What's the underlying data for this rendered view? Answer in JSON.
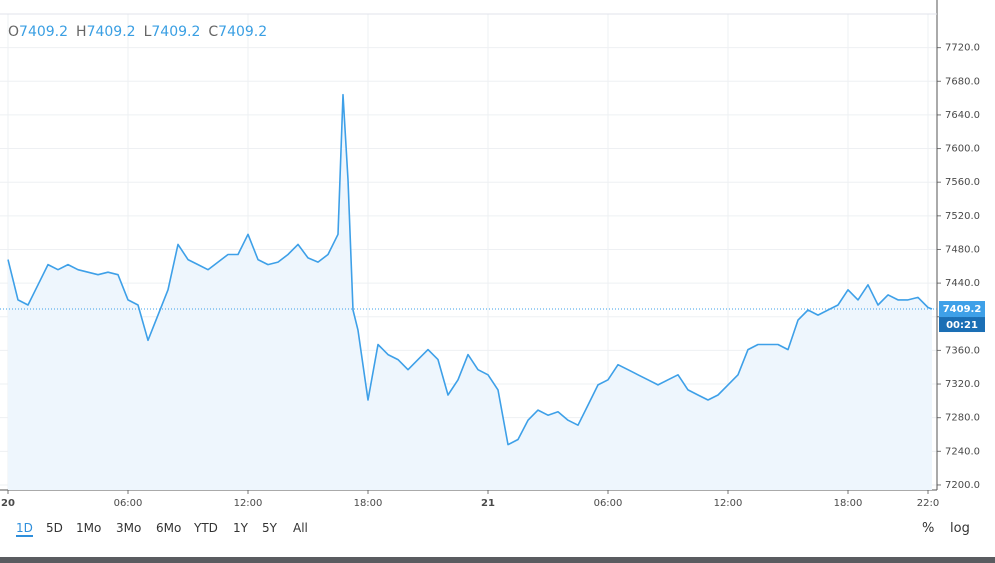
{
  "header": {
    "ohlc": [
      {
        "key": "O",
        "value": 7409.2
      },
      {
        "key": "H",
        "value": 7409.2
      },
      {
        "key": "L",
        "value": 7409.2
      },
      {
        "key": "C",
        "value": 7409.2
      }
    ]
  },
  "chart_data": {
    "type": "line",
    "x": [
      0,
      0.5,
      1,
      1.5,
      2,
      2.5,
      3,
      3.5,
      4,
      4.5,
      5,
      5.5,
      6,
      6.5,
      7,
      7.5,
      8,
      8.5,
      9,
      9.5,
      10,
      10.5,
      11,
      11.5,
      12,
      12.5,
      13,
      13.5,
      14,
      14.5,
      15,
      15.5,
      16,
      16.5,
      16.75,
      17,
      17.25,
      17.5,
      18,
      18.5,
      19,
      19.5,
      20,
      20.5,
      21,
      21.5,
      22,
      22.5,
      23,
      23.5,
      24,
      24.5,
      25,
      25.5,
      26,
      26.5,
      27,
      27.5,
      28,
      28.5,
      29,
      29.5,
      30,
      30.5,
      31,
      31.5,
      32,
      32.5,
      33,
      33.5,
      34,
      34.5,
      35,
      35.5,
      36,
      36.5,
      37,
      37.5,
      38,
      38.5,
      39,
      39.5,
      40,
      40.5,
      41,
      41.5,
      42,
      42.5,
      43,
      43.5,
      44,
      44.5,
      45,
      45.5,
      46,
      46.2
    ],
    "series": [
      {
        "color": "#3ea0e8",
        "values": [
          7468,
          7420,
          7414,
          7438,
          7462,
          7456,
          7462,
          7456,
          7453,
          7450,
          7453,
          7450,
          7420,
          7414,
          7372,
          7402,
          7432,
          7486,
          7468,
          7462,
          7456,
          7465,
          7474,
          7474,
          7498,
          7468,
          7462,
          7465,
          7474,
          7486,
          7470,
          7465,
          7474,
          7498,
          7664,
          7563,
          7408,
          7384,
          7301,
          7367,
          7355,
          7349,
          7337,
          7349,
          7361,
          7349,
          7307,
          7325,
          7355,
          7337,
          7331,
          7313,
          7248,
          7254,
          7277,
          7289,
          7283,
          7287,
          7277,
          7271,
          7295,
          7319,
          7325,
          7343,
          7337,
          7331,
          7325,
          7319,
          7325,
          7331,
          7313,
          7307,
          7301,
          7307,
          7319,
          7331,
          7361,
          7367,
          7367,
          7367,
          7361,
          7396,
          7408,
          7402,
          7408,
          7414,
          7432,
          7420,
          7438,
          7414,
          7426,
          7420,
          7420,
          7423,
          7411,
          7409.2
        ]
      }
    ],
    "xlim": [
      -0.4,
      46.45
    ],
    "xticks": [
      {
        "value": 0,
        "label": "20"
      },
      {
        "value": 6,
        "label": "06:00"
      },
      {
        "value": 12,
        "label": "12:00"
      },
      {
        "value": 18,
        "label": "18:00"
      },
      {
        "value": 24,
        "label": "21"
      },
      {
        "value": 30,
        "label": "06:00"
      },
      {
        "value": 36,
        "label": "12:00"
      },
      {
        "value": 42,
        "label": "18:00"
      },
      {
        "value": 46,
        "label": "22:0"
      }
    ],
    "ylim": [
      7194,
      7760
    ],
    "yticks": [
      {
        "value": 7200,
        "label": "7200.0"
      },
      {
        "value": 7240,
        "label": "7240.0"
      },
      {
        "value": 7280,
        "label": "7280.0"
      },
      {
        "value": 7320,
        "label": "7320.0"
      },
      {
        "value": 7360,
        "label": "7360.0"
      },
      {
        "value": 7400,
        "label": "7400.0"
      },
      {
        "value": 7440,
        "label": "7440.0"
      },
      {
        "value": 7480,
        "label": "7480.0"
      },
      {
        "value": 7520,
        "label": "7520.0"
      },
      {
        "value": 7560,
        "label": "7560.0"
      },
      {
        "value": 7600,
        "label": "7600.0"
      },
      {
        "value": 7640,
        "label": "7640.0"
      },
      {
        "value": 7680,
        "label": "7680.0"
      },
      {
        "value": 7720,
        "label": "7720.0"
      }
    ],
    "grid": true,
    "last_value": 7409.2,
    "countdown": "00:21"
  },
  "toolbar": {
    "ranges": [
      "1D",
      "5D",
      "1Mo",
      "3Mo",
      "6Mo",
      "YTD",
      "1Y",
      "5Y",
      "All"
    ],
    "options": [
      "%",
      "log"
    ]
  }
}
